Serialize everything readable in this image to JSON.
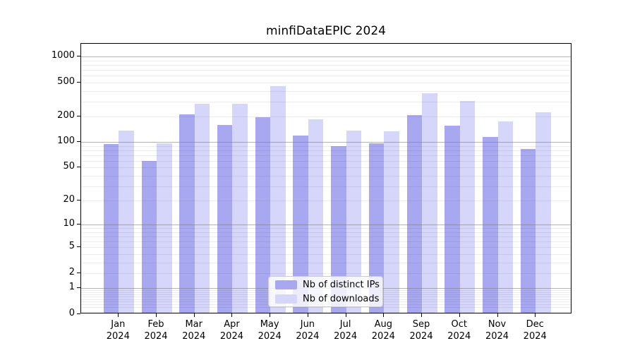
{
  "title": "minfiDataEPIC 2024",
  "chart_data": {
    "type": "bar",
    "title": "minfiDataEPIC 2024",
    "categories": [
      "Jan 2024",
      "Feb 2024",
      "Mar 2024",
      "Apr 2024",
      "May 2024",
      "Jun 2024",
      "Jul 2024",
      "Aug 2024",
      "Sep 2024",
      "Oct 2024",
      "Nov 2024",
      "Dec 2024"
    ],
    "months": [
      "Jan",
      "Feb",
      "Mar",
      "Apr",
      "May",
      "Jun",
      "Jul",
      "Aug",
      "Sep",
      "Oct",
      "Nov",
      "Dec"
    ],
    "year": "2024",
    "series": [
      {
        "name": "Nb of distinct IPs",
        "color": "#a8a8f0",
        "values": [
          95,
          60,
          212,
          159,
          198,
          120,
          90,
          97,
          207,
          157,
          116,
          83
        ]
      },
      {
        "name": "Nb of downloads",
        "color": "#d6d6fa",
        "values": [
          136,
          97,
          283,
          280,
          450,
          187,
          136,
          134,
          374,
          305,
          176,
          225
        ]
      }
    ],
    "xlabel": "",
    "ylabel": "",
    "y_scale": "log10(1+v)",
    "y_ticks": [
      1000,
      500,
      200,
      100,
      50,
      20,
      10,
      5,
      2,
      1,
      0
    ],
    "y_major_gridlines": [
      1,
      10,
      100,
      1000
    ],
    "ylim": [
      0,
      1390
    ],
    "grid": "horizontal, major dark + minor light, drawn over bars",
    "legend_position": "lower center"
  },
  "legend": {
    "items": [
      {
        "label": "Nb of distinct IPs",
        "color": "#a8a8f0"
      },
      {
        "label": "Nb of downloads",
        "color": "#d6d6fa"
      }
    ]
  }
}
